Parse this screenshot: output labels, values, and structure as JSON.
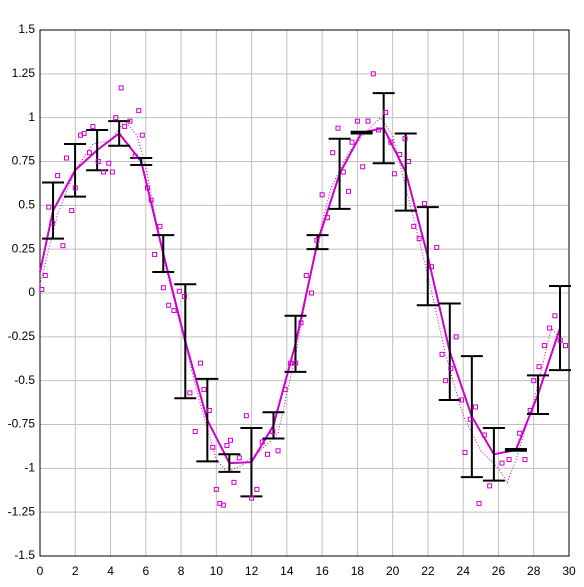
{
  "chart_data": {
    "type": "scatter",
    "xlim": [
      0,
      30
    ],
    "ylim": [
      -1.5,
      1.5
    ],
    "xticks": [
      0,
      2,
      4,
      6,
      8,
      10,
      12,
      14,
      16,
      18,
      20,
      22,
      24,
      26,
      28,
      30
    ],
    "yticks": [
      -1.5,
      -1.25,
      -1,
      -0.75,
      -0.5,
      -0.25,
      0,
      0.25,
      0.5,
      0.75,
      1,
      1.25,
      1.5
    ],
    "grid": true,
    "series": [
      {
        "mode": "markers",
        "color": "#cc00cc",
        "x": [
          0.1,
          0.3,
          0.5,
          0.7,
          1,
          1.3,
          1.5,
          1.8,
          2,
          2.3,
          2.5,
          2.8,
          3,
          3.3,
          3.6,
          3.9,
          4.1,
          4.3,
          4.6,
          4.8,
          5.1,
          5.4,
          5.6,
          5.8,
          6.1,
          6.3,
          6.5,
          6.8,
          7,
          7.3,
          7.6,
          7.9,
          8.2,
          8.5,
          8.8,
          9.1,
          9.3,
          9.6,
          9.8,
          10,
          10.2,
          10.4,
          10.6,
          10.8,
          11,
          11.3,
          11.7,
          12,
          12.3,
          12.6,
          12.9,
          13.2,
          13.5,
          13.9,
          14.2,
          14.5,
          14.8,
          15.1,
          15.4,
          15.7,
          16,
          16.3,
          16.6,
          16.9,
          17.2,
          17.5,
          17.7,
          18,
          18.3,
          18.6,
          18.9,
          19.2,
          19.6,
          19.9,
          20.1,
          20.4,
          20.7,
          20.9,
          21.2,
          21.5,
          21.8,
          22.2,
          22.5,
          22.8,
          23,
          23.3,
          23.6,
          23.9,
          24.1,
          24.4,
          24.7,
          24.9,
          25.2,
          25.5,
          26.2,
          26.6,
          27.2,
          27.5,
          27.8,
          28,
          28.3,
          28.6,
          28.9,
          29.2,
          29.5,
          29.8
        ],
        "values": [
          0.02,
          0.1,
          0.49,
          0.4,
          0.67,
          0.27,
          0.77,
          0.47,
          0.6,
          0.9,
          0.91,
          0.8,
          0.95,
          0.75,
          0.69,
          0.74,
          0.69,
          1,
          1.17,
          0.95,
          0.98,
          0.78,
          1.04,
          0.9,
          0.6,
          0.53,
          0.22,
          0.38,
          0.03,
          -0.07,
          -0.1,
          0.01,
          -0.02,
          -0.57,
          -0.79,
          -0.4,
          -0.55,
          -0.67,
          -0.88,
          -1.12,
          -1.2,
          -1.21,
          -0.87,
          -0.84,
          -1.08,
          -0.94,
          -0.7,
          -1.17,
          -1.12,
          -0.85,
          -0.92,
          -0.79,
          -0.9,
          -0.55,
          -0.4,
          -0.4,
          -0.17,
          0.1,
          0,
          0.3,
          0.56,
          0.43,
          0.8,
          0.94,
          0.69,
          0.58,
          0.86,
          0.98,
          0.72,
          0.98,
          1.25,
          0.93,
          1.03,
          0.86,
          0.68,
          0.79,
          0.88,
          0.75,
          0.38,
          0.31,
          0.51,
          0.15,
          0.26,
          -0.35,
          -0.5,
          -0.43,
          -0.25,
          -0.61,
          -0.91,
          -0.72,
          -0.65,
          -1.2,
          -0.81,
          -1.1,
          -0.97,
          -0.95,
          -0.8,
          -0.95,
          -0.67,
          -0.5,
          -0.42,
          -0.3,
          -0.2,
          -0.13,
          -0.27,
          -0.3
        ]
      },
      {
        "mode": "dotted",
        "color": "#cc00cc",
        "x": [
          0,
          1,
          2,
          3,
          4,
          4.8,
          5.5,
          6,
          7,
          8,
          9,
          10,
          10.6,
          11.5,
          12.5,
          13.5,
          14.5,
          15.5,
          16.5,
          17.5,
          18.5,
          19.3,
          20,
          21,
          22,
          23,
          24,
          25,
          26,
          26.5,
          27,
          28,
          29,
          29.8
        ],
        "values": [
          0.05,
          0.45,
          0.7,
          0.85,
          0.87,
          0.98,
          0.9,
          0.72,
          0.2,
          -0.2,
          -0.6,
          -0.95,
          -1.02,
          -0.98,
          -0.9,
          -0.8,
          -0.35,
          0.2,
          0.6,
          0.8,
          0.92,
          1.0,
          0.9,
          0.5,
          0.1,
          -0.35,
          -0.7,
          -0.9,
          -1.0,
          -1.08,
          -0.95,
          -0.62,
          -0.2,
          -0.3
        ]
      },
      {
        "mode": "lines",
        "color": "#cc00cc",
        "error_color": "#000000",
        "x": [
          0,
          0.74,
          1.99,
          3.24,
          4.49,
          5.74,
          6.99,
          8.24,
          9.49,
          10.74,
          11.99,
          13.24,
          14.49,
          15.74,
          16.99,
          18.24,
          19.49,
          20.74,
          21.99,
          23.24,
          24.49,
          25.74,
          26.99,
          28.24,
          29.49
        ],
        "values": [
          0.12,
          0.47,
          0.7,
          0.815,
          0.91,
          0.75,
          0.225,
          -0.275,
          -0.725,
          -0.97,
          -0.965,
          -0.755,
          -0.29,
          0.29,
          0.68,
          0.915,
          0.94,
          0.69,
          0.21,
          -0.335,
          -0.705,
          -0.92,
          -0.895,
          -0.58,
          -0.2
        ],
        "errors": [
          null,
          0.16,
          0.15,
          0.115,
          0.07,
          0.02,
          0.105,
          0.325,
          0.235,
          0.05,
          0.195,
          0.075,
          0.16,
          0.04,
          0.2,
          0.005,
          0.2,
          0.22,
          0.28,
          0.275,
          0.345,
          0.15,
          0.005,
          0.11,
          0.24
        ]
      }
    ]
  }
}
